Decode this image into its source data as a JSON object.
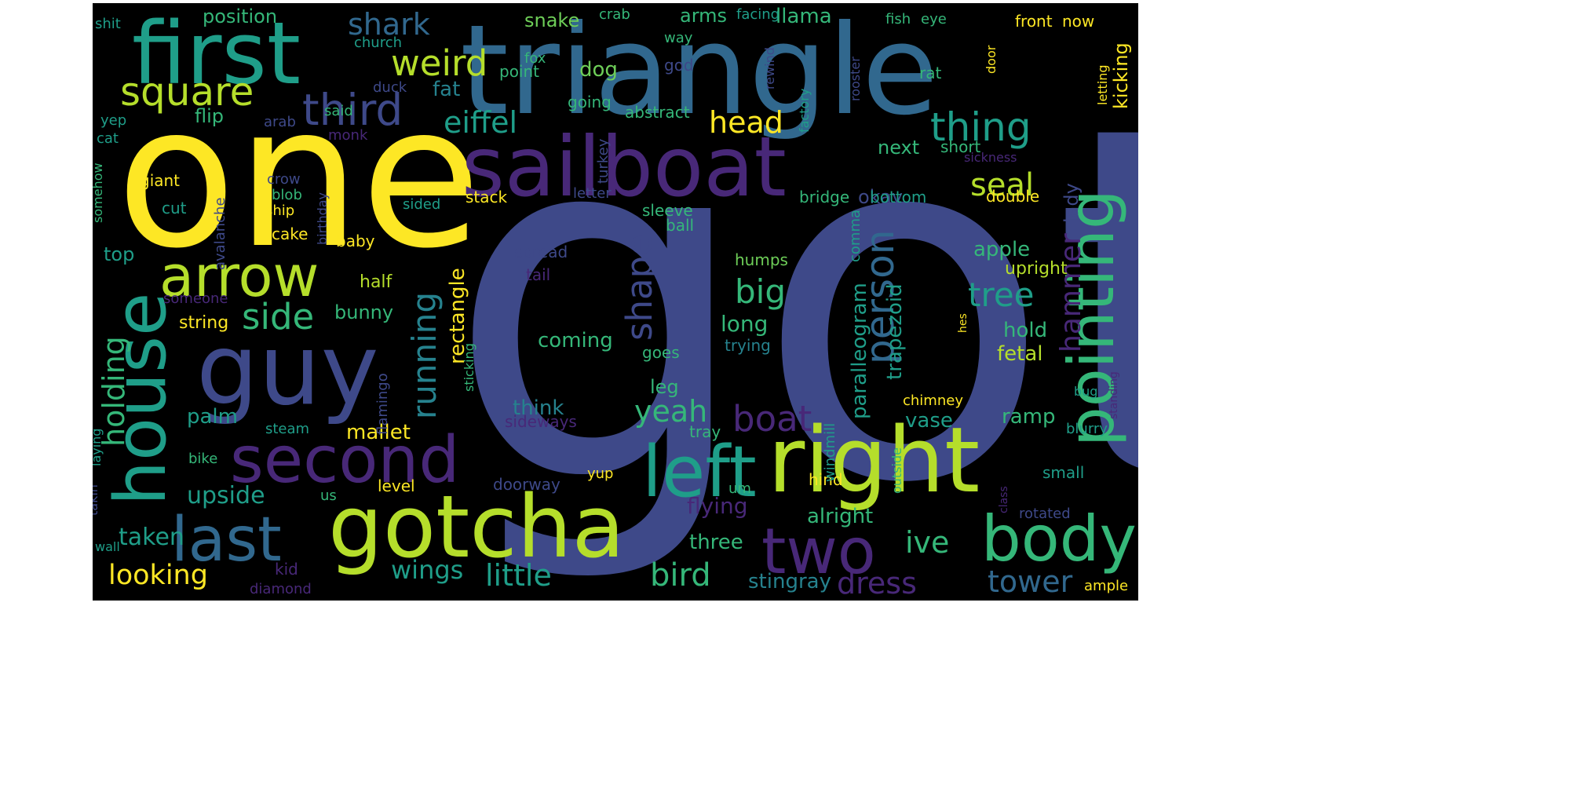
{
  "palette": {
    "yellow": "#fde725",
    "lime": "#b5de2b",
    "green": "#6ece58",
    "teal_green": "#35b779",
    "teal": "#1f9e89",
    "cyan_blue": "#26828e",
    "blue": "#31688e",
    "indigo": "#3e4989",
    "violet": "#482878",
    "purple": "#440154"
  },
  "words": [
    {
      "text": "got",
      "color": "indigo"
    },
    {
      "text": "one",
      "color": "yellow"
    },
    {
      "text": "triangle",
      "color": "blue"
    },
    {
      "text": "first",
      "color": "teal"
    },
    {
      "text": "sailboat",
      "color": "violet"
    },
    {
      "text": "guy",
      "color": "indigo"
    },
    {
      "text": "right",
      "color": "lime"
    },
    {
      "text": "gotcha",
      "color": "lime"
    },
    {
      "text": "second",
      "color": "violet"
    },
    {
      "text": "house",
      "color": "teal"
    },
    {
      "text": "arrow",
      "color": "lime"
    },
    {
      "text": "pointing",
      "color": "teal_green"
    },
    {
      "text": "left",
      "color": "teal"
    },
    {
      "text": "last",
      "color": "blue"
    },
    {
      "text": "body",
      "color": "teal_green"
    },
    {
      "text": "two",
      "color": "violet"
    },
    {
      "text": "square",
      "color": "lime"
    },
    {
      "text": "third",
      "color": "indigo"
    },
    {
      "text": "weird",
      "color": "lime"
    },
    {
      "text": "thing",
      "color": "teal"
    },
    {
      "text": "shark",
      "color": "blue"
    },
    {
      "text": "person",
      "color": "blue"
    },
    {
      "text": "shape",
      "color": "indigo"
    },
    {
      "text": "running",
      "color": "cyan_blue"
    },
    {
      "text": "side",
      "color": "teal_green"
    },
    {
      "text": "tree",
      "color": "teal"
    },
    {
      "text": "head",
      "color": "yellow"
    },
    {
      "text": "eiffel",
      "color": "teal"
    },
    {
      "text": "boat",
      "color": "violet"
    },
    {
      "text": "yeah",
      "color": "teal_green"
    },
    {
      "text": "big",
      "color": "teal_green"
    },
    {
      "text": "seal",
      "color": "lime"
    },
    {
      "text": "holding",
      "color": "teal_green"
    },
    {
      "text": "hammer",
      "color": "violet"
    },
    {
      "text": "wings",
      "color": "teal"
    },
    {
      "text": "little",
      "color": "teal"
    },
    {
      "text": "bird",
      "color": "teal_green"
    },
    {
      "text": "dress",
      "color": "violet"
    },
    {
      "text": "tower",
      "color": "blue"
    },
    {
      "text": "ive",
      "color": "teal_green"
    },
    {
      "text": "looking",
      "color": "yellow"
    },
    {
      "text": "upside",
      "color": "teal"
    },
    {
      "text": "taken",
      "color": "teal"
    },
    {
      "text": "mallet",
      "color": "yellow"
    },
    {
      "text": "think",
      "color": "cyan_blue"
    },
    {
      "text": "palm",
      "color": "teal"
    },
    {
      "text": "coming",
      "color": "teal_green"
    },
    {
      "text": "long",
      "color": "teal_green"
    },
    {
      "text": "rectangle",
      "color": "yellow"
    },
    {
      "text": "paralleogram",
      "color": "teal"
    },
    {
      "text": "trapezoid",
      "color": "teal"
    },
    {
      "text": "lady",
      "color": "indigo"
    },
    {
      "text": "apple",
      "color": "teal_green"
    },
    {
      "text": "upright",
      "color": "lime"
    },
    {
      "text": "hold",
      "color": "teal_green"
    },
    {
      "text": "fetal",
      "color": "lime"
    },
    {
      "text": "ramp",
      "color": "teal_green"
    },
    {
      "text": "vase",
      "color": "teal"
    },
    {
      "text": "alright",
      "color": "teal_green"
    },
    {
      "text": "three",
      "color": "teal_green"
    },
    {
      "text": "flying",
      "color": "violet"
    },
    {
      "text": "stingray",
      "color": "cyan_blue"
    },
    {
      "text": "bunny",
      "color": "teal_green"
    },
    {
      "text": "string",
      "color": "yellow"
    },
    {
      "text": "half",
      "color": "lime"
    },
    {
      "text": "top",
      "color": "teal"
    },
    {
      "text": "position",
      "color": "teal_green"
    },
    {
      "text": "fat",
      "color": "cyan_blue"
    },
    {
      "text": "flip",
      "color": "teal_green"
    },
    {
      "text": "dog",
      "color": "green"
    },
    {
      "text": "snake",
      "color": "green"
    },
    {
      "text": "arms",
      "color": "teal_green"
    },
    {
      "text": "llama",
      "color": "teal_green"
    },
    {
      "text": "kicking",
      "color": "yellow"
    },
    {
      "text": "next",
      "color": "teal_green"
    },
    {
      "text": "okay",
      "color": "indigo"
    },
    {
      "text": "short",
      "color": "teal_green"
    },
    {
      "text": "bridge",
      "color": "teal_green"
    },
    {
      "text": "bottom",
      "color": "teal"
    },
    {
      "text": "double",
      "color": "yellow"
    },
    {
      "text": "giant",
      "color": "yellow"
    },
    {
      "text": "cut",
      "color": "teal"
    },
    {
      "text": "cake",
      "color": "yellow"
    },
    {
      "text": "baby",
      "color": "yellow"
    },
    {
      "text": "leg",
      "color": "teal_green"
    },
    {
      "text": "humps",
      "color": "green"
    },
    {
      "text": "trying",
      "color": "cyan_blue"
    },
    {
      "text": "spread",
      "color": "indigo"
    },
    {
      "text": "tail",
      "color": "violet"
    },
    {
      "text": "ball",
      "color": "teal_green"
    },
    {
      "text": "sleeve",
      "color": "teal_green"
    },
    {
      "text": "stack",
      "color": "yellow"
    },
    {
      "text": "sided",
      "color": "teal"
    },
    {
      "text": "blob",
      "color": "teal_green"
    },
    {
      "text": "ship",
      "color": "yellow"
    },
    {
      "text": "crow",
      "color": "indigo"
    },
    {
      "text": "abstract",
      "color": "teal_green"
    },
    {
      "text": "going",
      "color": "teal_green"
    },
    {
      "text": "point",
      "color": "teal_green"
    },
    {
      "text": "fox",
      "color": "teal_green"
    },
    {
      "text": "god",
      "color": "indigo"
    },
    {
      "text": "rat",
      "color": "teal_green"
    },
    {
      "text": "front",
      "color": "yellow"
    },
    {
      "text": "now",
      "color": "yellow"
    },
    {
      "text": "fish",
      "color": "teal_green"
    },
    {
      "text": "eye",
      "color": "teal_green"
    },
    {
      "text": "crab",
      "color": "teal_green"
    },
    {
      "text": "facing",
      "color": "teal"
    },
    {
      "text": "way",
      "color": "teal_green"
    },
    {
      "text": "church",
      "color": "teal"
    },
    {
      "text": "duck",
      "color": "indigo"
    },
    {
      "text": "monk",
      "color": "violet"
    },
    {
      "text": "said",
      "color": "teal_green"
    },
    {
      "text": "arab",
      "color": "indigo"
    },
    {
      "text": "shit",
      "color": "teal"
    },
    {
      "text": "yep",
      "color": "teal"
    },
    {
      "text": "cat",
      "color": "teal"
    },
    {
      "text": "letter",
      "color": "indigo"
    },
    {
      "text": "someone",
      "color": "violet"
    },
    {
      "text": "kid",
      "color": "violet"
    },
    {
      "text": "diamond",
      "color": "violet"
    },
    {
      "text": "steam",
      "color": "teal"
    },
    {
      "text": "bike",
      "color": "teal_green"
    },
    {
      "text": "us",
      "color": "teal_green"
    },
    {
      "text": "level",
      "color": "yellow"
    },
    {
      "text": "doorway",
      "color": "indigo"
    },
    {
      "text": "yup",
      "color": "yellow"
    },
    {
      "text": "um",
      "color": "teal_green"
    },
    {
      "text": "hind",
      "color": "yellow"
    },
    {
      "text": "goes",
      "color": "teal_green"
    },
    {
      "text": "sideways",
      "color": "violet"
    },
    {
      "text": "tray",
      "color": "teal_green"
    },
    {
      "text": "chimney",
      "color": "yellow"
    },
    {
      "text": "blurry",
      "color": "teal"
    },
    {
      "text": "small",
      "color": "teal"
    },
    {
      "text": "rotated",
      "color": "indigo"
    },
    {
      "text": "ample",
      "color": "yellow"
    },
    {
      "text": "bug",
      "color": "teal"
    },
    {
      "text": "wall",
      "color": "teal"
    },
    {
      "text": "takin",
      "color": "indigo"
    },
    {
      "text": "laying",
      "color": "teal"
    },
    {
      "text": "somehow",
      "color": "teal_green"
    },
    {
      "text": "avalanche",
      "color": "indigo"
    },
    {
      "text": "birthday",
      "color": "indigo"
    },
    {
      "text": "turkey",
      "color": "indigo"
    },
    {
      "text": "flamingo",
      "color": "indigo"
    },
    {
      "text": "sticking",
      "color": "teal_green"
    },
    {
      "text": "factory",
      "color": "teal"
    },
    {
      "text": "rewind",
      "color": "indigo"
    },
    {
      "text": "rooster",
      "color": "indigo"
    },
    {
      "text": "door",
      "color": "yellow"
    },
    {
      "text": "letting",
      "color": "yellow"
    },
    {
      "text": "sickness",
      "color": "violet"
    },
    {
      "text": "comma",
      "color": "teal"
    },
    {
      "text": "windmill",
      "color": "teal"
    },
    {
      "text": "outside",
      "color": "teal_green"
    },
    {
      "text": "hes",
      "color": "yellow"
    },
    {
      "text": "standing",
      "color": "violet"
    },
    {
      "text": "class",
      "color": "violet"
    }
  ]
}
